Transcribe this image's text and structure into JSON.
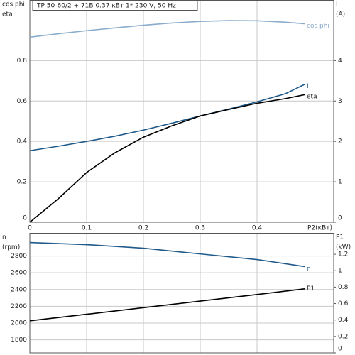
{
  "chart_data": [
    {
      "type": "line",
      "title": "TP 50-60/2 + 71B   0.37 кВт   1* 230 V, 50 Hz",
      "ylabels": [
        "cos phi",
        "eta"
      ],
      "y2labels": [
        "I",
        "(A)"
      ],
      "xlabel": "P2(кВт)",
      "x": [
        0,
        0.05,
        0.1,
        0.15,
        0.2,
        0.25,
        0.3,
        0.35,
        0.4,
        0.45,
        0.485
      ],
      "xlim": [
        0,
        0.535
      ],
      "xticks": [
        0,
        0.1,
        0.2,
        0.3,
        0.4
      ],
      "ylim": [
        0,
        1.1
      ],
      "yticks": [
        0,
        0.2,
        0.4,
        0.6,
        0.8
      ],
      "y2lim": [
        0,
        5.5
      ],
      "y2ticks": [
        0,
        1,
        2,
        3,
        4
      ],
      "grid": true,
      "series": [
        {
          "name": "cos phi",
          "color": "#8aaccc",
          "values": [
            0.916,
            0.933,
            0.948,
            0.962,
            0.975,
            0.986,
            0.994,
            0.998,
            0.997,
            0.99,
            0.982
          ]
        },
        {
          "name": "I",
          "color": "#1f5a8a",
          "axis": "y2",
          "values": [
            1.77,
            1.88,
            2.0,
            2.13,
            2.28,
            2.45,
            2.63,
            2.8,
            2.98,
            3.18,
            3.42
          ]
        },
        {
          "name": "eta",
          "color": "#000000",
          "values": [
            0,
            0.116,
            0.246,
            0.344,
            0.421,
            0.477,
            0.526,
            0.558,
            0.589,
            0.612,
            0.632
          ]
        }
      ]
    },
    {
      "type": "line",
      "ylabels": [
        "n",
        "(rpm)"
      ],
      "y2labels": [
        "P1",
        "(kW)"
      ],
      "x": [
        0,
        0.1,
        0.2,
        0.3,
        0.4,
        0.485
      ],
      "xlim": [
        0,
        0.535
      ],
      "xticks": [
        0,
        0.1,
        0.2,
        0.3,
        0.4
      ],
      "ylim": [
        1644,
        3076
      ],
      "yticks": [
        1800,
        2000,
        2200,
        2400,
        2600,
        2800
      ],
      "y2lim": [
        0,
        1.46
      ],
      "y2ticks": [
        0,
        0.2,
        0.4,
        0.6,
        0.8,
        1,
        1.2
      ],
      "grid": true,
      "series": [
        {
          "name": "n",
          "color": "#1f5a8a",
          "values": [
            2961,
            2936,
            2893,
            2825,
            2758,
            2673
          ]
        },
        {
          "name": "P1",
          "color": "#000000",
          "axis": "y2",
          "values": [
            0.39,
            0.47,
            0.55,
            0.63,
            0.71,
            0.78
          ]
        }
      ]
    }
  ]
}
